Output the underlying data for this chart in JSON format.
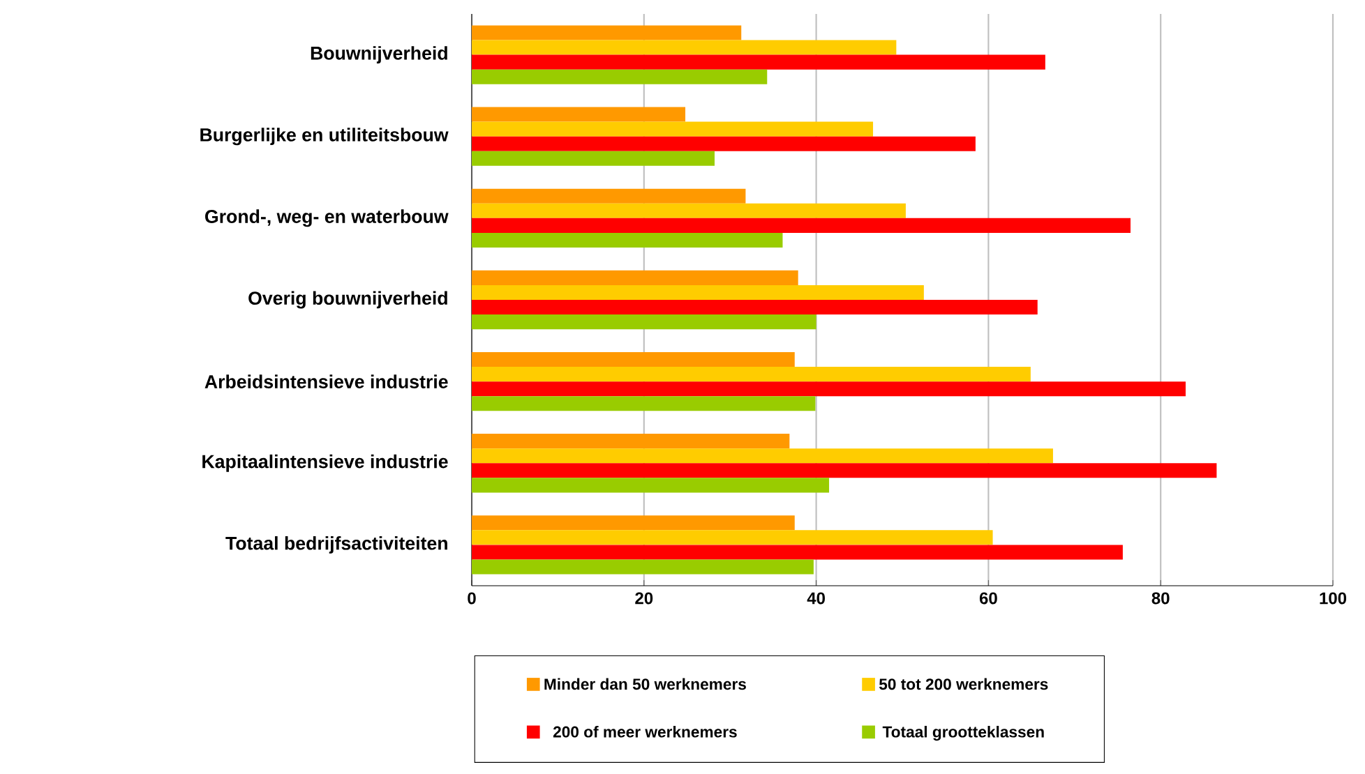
{
  "chart_data": {
    "type": "bar",
    "orientation": "horizontal",
    "categories": [
      "Bouwnijverheid",
      "Burgerlijke en utiliteitsbouw",
      "Grond-, weg- en waterbouw",
      "Overig bouwnijverheid",
      "Arbeidsintensieve industrie",
      "Kapitaalintensieve industrie",
      "Totaal bedrijfsactiviteiten"
    ],
    "series": [
      {
        "name": "Minder dan 50 werknemers",
        "color": "#ff9900",
        "values": [
          31.3,
          24.8,
          31.8,
          37.9,
          37.5,
          36.9,
          37.5
        ]
      },
      {
        "name": "50 tot 200 werknemers",
        "color": "#ffcc00",
        "values": [
          49.3,
          46.6,
          50.4,
          52.5,
          64.9,
          67.5,
          60.5
        ]
      },
      {
        "name": "200 of meer werknemers",
        "color": "#ff0000",
        "values": [
          66.6,
          58.5,
          76.5,
          65.7,
          82.9,
          86.5,
          75.6
        ]
      },
      {
        "name": "Totaal grootteklassen",
        "color": "#99cc00",
        "values": [
          34.3,
          28.2,
          36.1,
          40.0,
          39.9,
          41.5,
          39.7
        ]
      }
    ],
    "xlim": [
      0,
      100
    ],
    "xticks": [
      0,
      20,
      40,
      60,
      80,
      100
    ],
    "grid": "x",
    "legend": "bottom"
  }
}
